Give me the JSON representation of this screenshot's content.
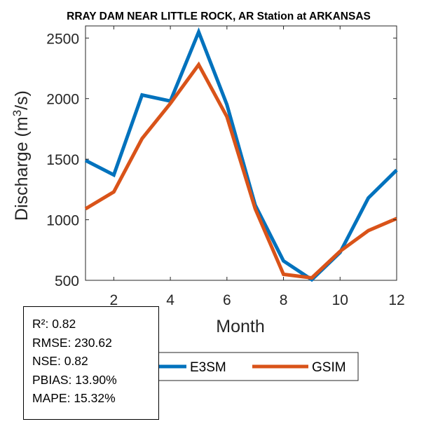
{
  "chart_data": {
    "type": "line",
    "title": "RRAY DAM NEAR LITTLE ROCK, AR  Station at  ARKANSAS",
    "xlabel": "Month",
    "ylabel": "Discharge (m",
    "ylabel_sup": "3",
    "ylabel_end": "/s)",
    "xlim": [
      1,
      12
    ],
    "ylim": [
      500,
      2600
    ],
    "xticks": [
      2,
      4,
      6,
      8,
      10,
      12
    ],
    "yticks": [
      500,
      1000,
      1500,
      2000,
      2500
    ],
    "grid": false,
    "legend_position": "bottom",
    "x": [
      1,
      2,
      3,
      4,
      5,
      6,
      7,
      8,
      9,
      10,
      11,
      12
    ],
    "series": [
      {
        "name": "E3SM",
        "color": "#0072BD",
        "values": [
          1490,
          1370,
          2030,
          1980,
          2550,
          1950,
          1120,
          660,
          505,
          730,
          1180,
          1410
        ]
      },
      {
        "name": "GSIM",
        "color": "#D95319",
        "values": [
          1090,
          1230,
          1670,
          1960,
          2280,
          1850,
          1090,
          550,
          520,
          740,
          910,
          1010
        ]
      }
    ]
  },
  "stats": {
    "r2": "R²: 0.82",
    "rmse": "RMSE: 230.62",
    "nse": "NSE: 0.82",
    "pbias": "PBIAS: 13.90%",
    "mape": "MAPE: 15.32%"
  }
}
